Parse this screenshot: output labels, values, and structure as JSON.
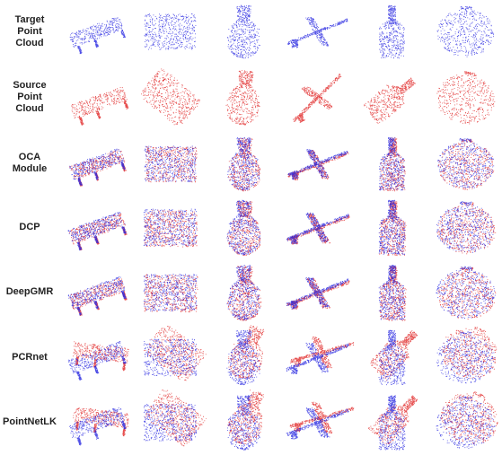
{
  "rows": [
    {
      "key": "target",
      "label": "Target\nPoint\nCloud",
      "mode": "target"
    },
    {
      "key": "source",
      "label": "Source\nPoint\nCloud",
      "mode": "source"
    },
    {
      "key": "oca",
      "label": "OCA\nModule",
      "mode": "aligned"
    },
    {
      "key": "dcp",
      "label": "DCP",
      "mode": "aligned"
    },
    {
      "key": "deepgmr",
      "label": "DeepGMR",
      "mode": "aligned"
    },
    {
      "key": "pcrnet",
      "label": "PCRnet",
      "mode": "misaligned"
    },
    {
      "key": "pointnetlk",
      "label": "PointNetLK",
      "mode": "misaligned"
    }
  ],
  "objects": [
    "table",
    "box",
    "vase",
    "airplane",
    "bottle",
    "pot"
  ],
  "colors": {
    "target": "#2323e0",
    "source": "#e02323"
  }
}
